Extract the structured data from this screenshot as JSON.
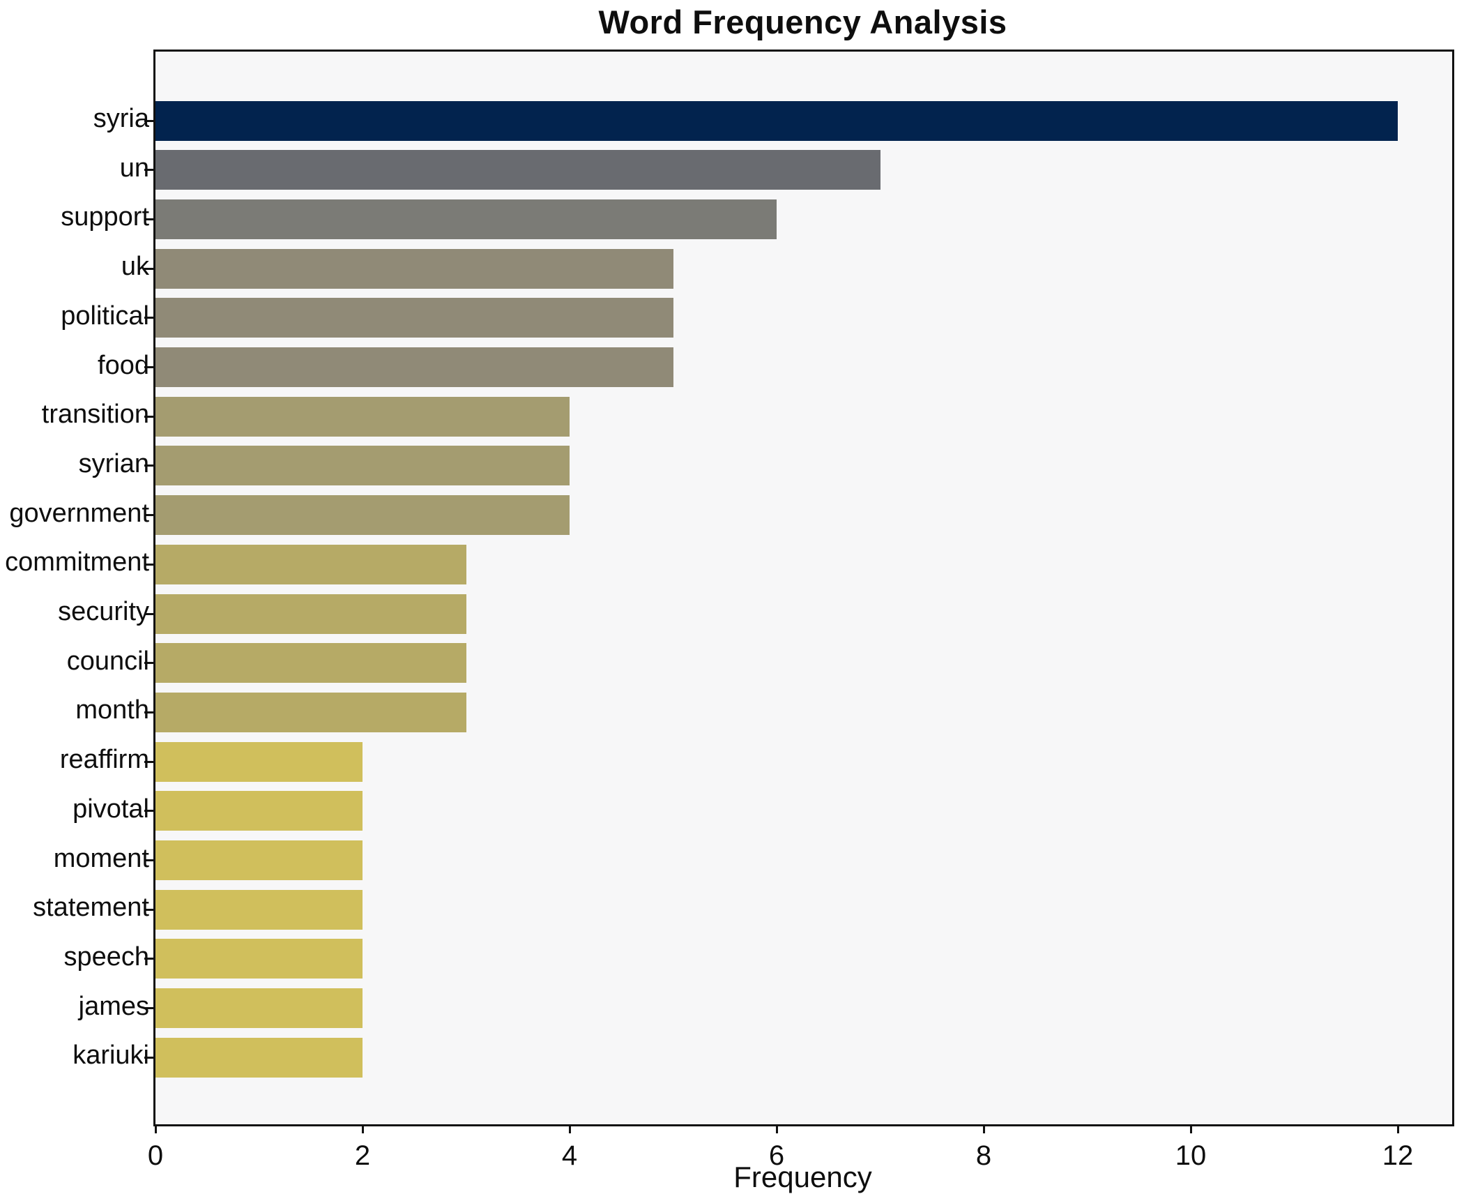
{
  "chart_data": {
    "type": "bar",
    "orientation": "horizontal",
    "title": "Word Frequency Analysis",
    "xlabel": "Frequency",
    "ylabel": "",
    "categories": [
      "syria",
      "un",
      "support",
      "uk",
      "political",
      "food",
      "transition",
      "syrian",
      "government",
      "commitment",
      "security",
      "council",
      "month",
      "reaffirm",
      "pivotal",
      "moment",
      "statement",
      "speech",
      "james",
      "kariuki"
    ],
    "values": [
      12,
      7,
      6,
      5,
      5,
      5,
      4,
      4,
      4,
      3,
      3,
      3,
      3,
      2,
      2,
      2,
      2,
      2,
      2,
      2
    ],
    "bar_colors": [
      "#02234e",
      "#696b70",
      "#7b7b76",
      "#908a77",
      "#908a77",
      "#908a77",
      "#a49c70",
      "#a49c70",
      "#a49c70",
      "#b6aa66",
      "#b6aa66",
      "#b6aa66",
      "#b6aa66",
      "#d0bf5c",
      "#d0bf5c",
      "#d0bf5c",
      "#d0bf5c",
      "#d0bf5c",
      "#d0bf5c",
      "#d0bf5c"
    ],
    "value_color_map": {
      "12": "#02234e",
      "7": "#696b70",
      "6": "#7b7b76",
      "5": "#908a77",
      "4": "#a49c70",
      "3": "#b6aa66",
      "2": "#d0bf5c"
    },
    "xticks": [
      0,
      2,
      4,
      6,
      8,
      10,
      12
    ],
    "xlim": [
      0,
      12.53
    ],
    "grid": false,
    "legend": "none",
    "plot_background": "#f7f7f8",
    "figure_background": "#ffffff",
    "spine_color": "#111111",
    "title_color": "#0e0e0e",
    "tick_label_color": "#0e0e0e"
  }
}
